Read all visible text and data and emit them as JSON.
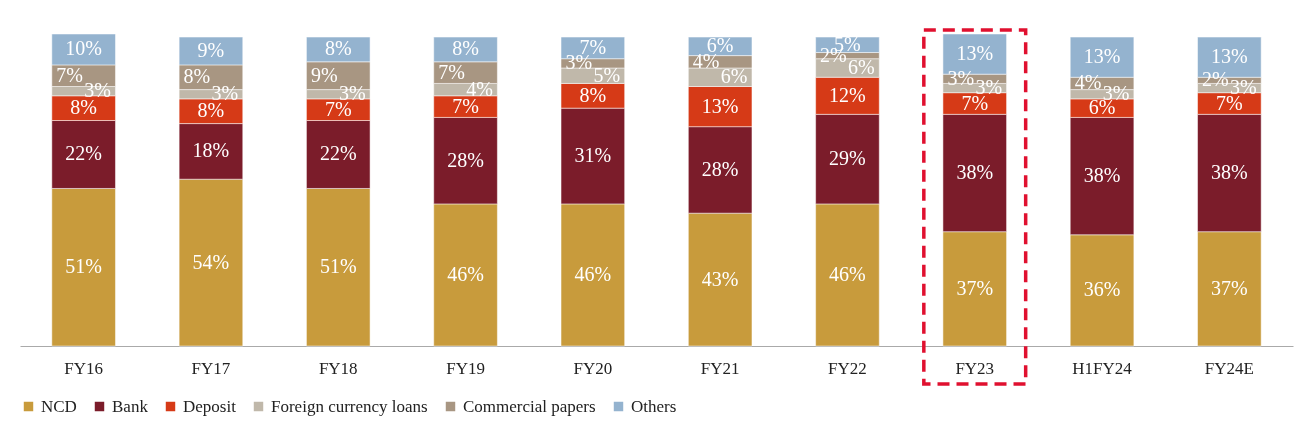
{
  "chart_data": {
    "type": "bar",
    "stacked": true,
    "legend": "bottom",
    "grid": false,
    "categories": [
      "FY16",
      "FY17",
      "FY18",
      "FY19",
      "FY20",
      "FY21",
      "FY22",
      "FY23",
      "H1FY24",
      "FY24E"
    ],
    "series": [
      {
        "name": "NCD",
        "color": "#c89b3c",
        "values": [
          51,
          54,
          51,
          46,
          46,
          43,
          46,
          37,
          36,
          37
        ],
        "value_labels": [
          "51%",
          "54%",
          "51%",
          "46%",
          "46%",
          "43%",
          "46%",
          "37%",
          "36%",
          "37%"
        ]
      },
      {
        "name": "Bank",
        "color": "#7b1c2a",
        "values": [
          22,
          18,
          22,
          28,
          31,
          28,
          29,
          38,
          38,
          38
        ],
        "value_labels": [
          "22%",
          "18%",
          "22%",
          "28%",
          "31%",
          "28%",
          "29%",
          "38%",
          "38%",
          "38%"
        ]
      },
      {
        "name": "Deposit",
        "color": "#d63a17",
        "values": [
          8,
          8,
          7,
          7,
          8,
          13,
          12,
          7,
          6,
          7
        ],
        "value_labels": [
          "8%",
          "8%",
          "7%",
          "7%",
          "8%",
          "13%",
          "12%",
          "7%",
          "6%",
          "7%"
        ]
      },
      {
        "name": "Foreign currency loans",
        "color": "#c0b8aa",
        "values": [
          3,
          3,
          3,
          4,
          5,
          6,
          6,
          3,
          3,
          3
        ],
        "value_labels": [
          "3%",
          "3%",
          "3%",
          "4%",
          "5%",
          "6%",
          "6%",
          "3%",
          "3%",
          "3%"
        ]
      },
      {
        "name": "Commercial papers",
        "color": "#a89682",
        "values": [
          7,
          8,
          9,
          7,
          3,
          4,
          2,
          3,
          4,
          2
        ],
        "value_labels": [
          "7%",
          "8%",
          "9%",
          "7%",
          "3%",
          "4%",
          "2%",
          "3%",
          "4%",
          "2%"
        ]
      },
      {
        "name": "Others",
        "color": "#94b3cf",
        "values": [
          10,
          9,
          8,
          8,
          7,
          6,
          5,
          13,
          13,
          13
        ],
        "value_labels": [
          "10%",
          "9%",
          "8%",
          "8%",
          "7%",
          "6%",
          "5%",
          "13%",
          "13%",
          "13%"
        ]
      }
    ]
  }
}
